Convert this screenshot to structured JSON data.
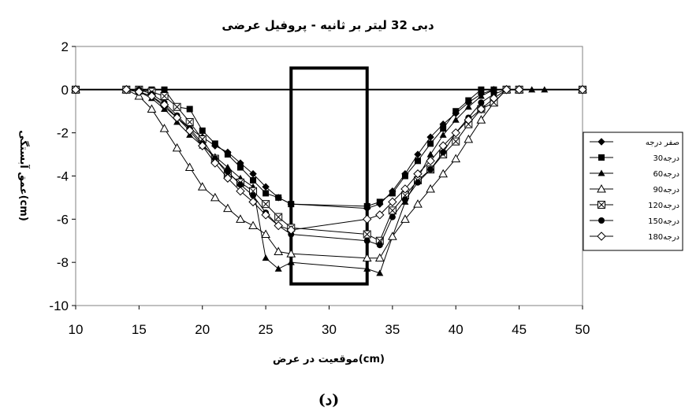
{
  "chart_data": {
    "type": "line",
    "title": "دبی 32 لیتر بر ثانیه - پروفیل عرضی",
    "xlabel": "موقعیت در عرض(cm)",
    "ylabel": "عمق آبستگی(cm)",
    "caption": "(د)",
    "xlim": [
      10,
      50
    ],
    "ylim": [
      -10,
      2
    ],
    "xticks": [
      "10",
      "15",
      "20",
      "25",
      "30",
      "35",
      "40",
      "45",
      "50"
    ],
    "yticks": [
      "2",
      "0",
      "-2",
      "-4",
      "-6",
      "-8",
      "-10"
    ],
    "grid": false,
    "legend_position": "right",
    "pier": {
      "x": [
        27,
        33
      ],
      "y": [
        -9,
        1
      ]
    },
    "series": [
      {
        "name": "صفر درجه",
        "marker": "diamond-filled",
        "x": [
          10,
          14,
          15,
          16,
          17,
          18,
          19,
          20,
          21,
          22,
          23,
          24,
          25,
          26,
          27,
          33,
          34,
          35,
          36,
          37,
          38,
          39,
          40,
          41,
          42,
          43,
          44,
          45,
          50
        ],
        "y": [
          0,
          0,
          -0.1,
          -0.3,
          -0.8,
          -1.3,
          -1.8,
          -2.2,
          -2.6,
          -2.9,
          -3.4,
          -3.9,
          -4.5,
          -5.0,
          -5.3,
          -5.5,
          -5.3,
          -4.7,
          -3.9,
          -3.0,
          -2.2,
          -1.6,
          -1.1,
          -0.6,
          -0.2,
          0,
          0,
          0,
          0
        ]
      },
      {
        "name": "30درجه",
        "marker": "square-filled",
        "x": [
          10,
          14,
          15,
          16,
          17,
          18,
          19,
          20,
          21,
          22,
          23,
          24,
          25,
          26,
          27,
          33,
          34,
          35,
          36,
          37,
          38,
          39,
          40,
          41,
          42,
          43,
          44,
          45,
          50
        ],
        "y": [
          0,
          0,
          0,
          0,
          0,
          -0.8,
          -0.9,
          -1.9,
          -2.5,
          -3.0,
          -3.6,
          -4.2,
          -4.8,
          -5.0,
          -5.3,
          -5.4,
          -5.2,
          -4.8,
          -4.0,
          -3.3,
          -2.5,
          -1.8,
          -1.0,
          -0.5,
          0,
          0,
          0,
          0,
          0
        ]
      },
      {
        "name": "60درجه",
        "marker": "triangle-filled",
        "x": [
          10,
          14,
          15,
          16,
          17,
          18,
          19,
          20,
          21,
          22,
          23,
          24,
          25,
          26,
          27,
          33,
          34,
          35,
          36,
          37,
          38,
          39,
          40,
          41,
          42,
          43,
          44,
          45,
          46,
          47,
          50
        ],
        "y": [
          0,
          0,
          -0.1,
          -0.4,
          -0.9,
          -1.5,
          -2.1,
          -2.6,
          -3.1,
          -3.6,
          -4.1,
          -4.5,
          -7.8,
          -8.3,
          -8.0,
          -8.3,
          -8.5,
          -6.8,
          -5.2,
          -4.1,
          -3.0,
          -2.1,
          -1.4,
          -0.8,
          -0.3,
          0,
          0,
          0,
          0,
          0,
          0
        ]
      },
      {
        "name": "90درجه",
        "marker": "triangle-open",
        "x": [
          10,
          14,
          15,
          16,
          17,
          18,
          19,
          20,
          21,
          22,
          23,
          24,
          25,
          26,
          27,
          33,
          34,
          35,
          36,
          37,
          38,
          39,
          40,
          41,
          42,
          43,
          44,
          45,
          50
        ],
        "y": [
          0,
          0,
          -0.3,
          -0.9,
          -1.8,
          -2.7,
          -3.6,
          -4.5,
          -5.0,
          -5.5,
          -6.0,
          -6.3,
          -6.7,
          -7.5,
          -7.6,
          -7.8,
          -7.8,
          -6.8,
          -6.0,
          -5.3,
          -4.6,
          -3.9,
          -3.2,
          -2.3,
          -1.4,
          -0.6,
          0,
          0,
          0
        ]
      },
      {
        "name": "120درجه",
        "marker": "square-x",
        "x": [
          10,
          14,
          15,
          16,
          17,
          18,
          19,
          20,
          21,
          22,
          23,
          24,
          25,
          26,
          27,
          33,
          34,
          35,
          36,
          37,
          38,
          39,
          40,
          41,
          42,
          43,
          44,
          45,
          50
        ],
        "y": [
          0,
          0,
          0,
          -0.1,
          -0.3,
          -0.8,
          -1.5,
          -2.3,
          -3.2,
          -3.9,
          -4.3,
          -4.7,
          -5.3,
          -5.9,
          -6.4,
          -6.7,
          -7.0,
          -5.6,
          -4.9,
          -4.2,
          -3.7,
          -3.0,
          -2.4,
          -1.6,
          -0.9,
          -0.6,
          0,
          0,
          0
        ]
      },
      {
        "name": "150درجه",
        "marker": "circle-filled",
        "x": [
          10,
          14,
          15,
          16,
          17,
          18,
          19,
          20,
          21,
          22,
          23,
          24,
          25,
          26,
          27,
          33,
          34,
          35,
          36,
          37,
          38,
          39,
          40,
          41,
          42,
          43,
          44,
          45,
          50
        ],
        "y": [
          0,
          0,
          0,
          -0.2,
          -0.6,
          -1.2,
          -1.8,
          -2.5,
          -3.2,
          -3.8,
          -4.4,
          -4.9,
          -5.7,
          -6.3,
          -6.7,
          -7.0,
          -7.2,
          -5.9,
          -5.1,
          -4.3,
          -3.7,
          -2.9,
          -2.0,
          -1.3,
          -0.6,
          -0.2,
          0,
          0,
          0
        ]
      },
      {
        "name": "180درجه",
        "marker": "diamond-open",
        "x": [
          10,
          14,
          15,
          16,
          17,
          18,
          19,
          20,
          21,
          22,
          23,
          24,
          25,
          26,
          27,
          33,
          34,
          35,
          36,
          37,
          38,
          39,
          40,
          41,
          42,
          43,
          44,
          45,
          50
        ],
        "y": [
          0,
          0,
          -0.1,
          -0.3,
          -0.7,
          -1.3,
          -1.9,
          -2.6,
          -3.4,
          -4.1,
          -4.7,
          -5.2,
          -5.8,
          -6.3,
          -6.5,
          -6.0,
          -5.8,
          -5.2,
          -4.6,
          -3.9,
          -3.3,
          -2.6,
          -2.0,
          -1.4,
          -0.9,
          -0.4,
          0,
          0,
          0
        ]
      }
    ]
  }
}
